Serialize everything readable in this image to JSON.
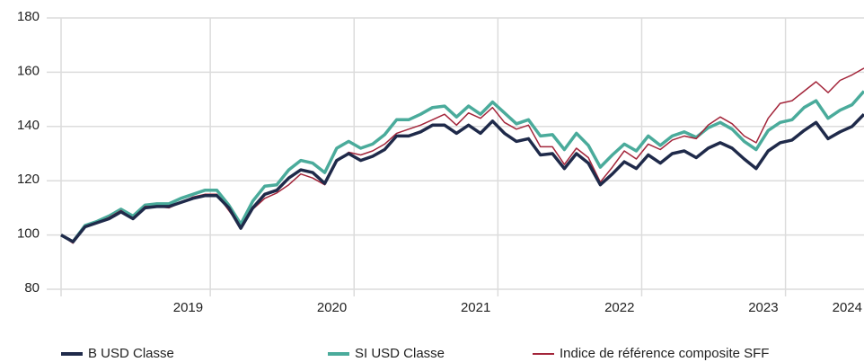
{
  "chart_data": {
    "type": "line",
    "categories": [
      null,
      null,
      null,
      null,
      null,
      null,
      null,
      null,
      null,
      null,
      null,
      null,
      "2019",
      null,
      null,
      null,
      null,
      null,
      null,
      null,
      null,
      null,
      null,
      null,
      "2020",
      null,
      null,
      null,
      null,
      null,
      null,
      null,
      null,
      null,
      null,
      null,
      "2021",
      null,
      null,
      null,
      null,
      null,
      null,
      null,
      null,
      null,
      null,
      null,
      "2022",
      null,
      null,
      null,
      null,
      null,
      null,
      null,
      null,
      null,
      null,
      null,
      "2023",
      null,
      null,
      null,
      null,
      null,
      null,
      "2024"
    ],
    "series": [
      {
        "name": "B USD Classe",
        "color": "#1f2a4a",
        "values": [
          100,
          97.5,
          103,
          104.5,
          106,
          108.5,
          106,
          110,
          110.5,
          110.5,
          112,
          113.5,
          114.5,
          114.5,
          110,
          102.5,
          110,
          115,
          116.5,
          121,
          124,
          123,
          119,
          127.5,
          130,
          127.5,
          129,
          131.5,
          136.5,
          136.5,
          138,
          140.5,
          140.5,
          137.5,
          140.5,
          137.5,
          142,
          137.5,
          134.5,
          135.5,
          129.5,
          130,
          124.5,
          130,
          126.5,
          118.5,
          122.5,
          127,
          124.5,
          129.5,
          126.5,
          130,
          131,
          128.5,
          132,
          134,
          132,
          128,
          124.5,
          131,
          134,
          135,
          138.5,
          141.5,
          135.5,
          138,
          140,
          144.5
        ]
      },
      {
        "name": "SI USD Classe",
        "color": "#4aab9b",
        "values": [
          100,
          97.5,
          103.5,
          105,
          107,
          109.5,
          107,
          111,
          111.5,
          111.5,
          113.5,
          115,
          116.5,
          116.5,
          111,
          104,
          112.5,
          118,
          118.5,
          124,
          127.5,
          126.5,
          123,
          132,
          134.5,
          132,
          133.5,
          137,
          142.5,
          142.5,
          144.5,
          147,
          147.5,
          143.5,
          147.5,
          144.5,
          149,
          145,
          141,
          142.5,
          136.5,
          137,
          131.5,
          137.5,
          133,
          125,
          129.5,
          133.5,
          131,
          136.5,
          133,
          136.5,
          138,
          136,
          139.5,
          141.5,
          139,
          134.5,
          131.5,
          138.5,
          141.5,
          142.5,
          147,
          149.5,
          143,
          146,
          148,
          153
        ]
      },
      {
        "name": "Indice de référence composite SFF",
        "color": "#a3253a",
        "values": [
          100,
          97,
          103,
          104.5,
          106.5,
          109,
          106,
          110.5,
          110.5,
          110,
          112,
          114,
          115,
          115,
          109,
          103,
          109.5,
          113.5,
          115.5,
          118.5,
          122.5,
          121,
          118.5,
          127,
          130.5,
          129.5,
          131,
          133.5,
          137.5,
          139,
          140.5,
          142.5,
          144.5,
          140.5,
          145,
          143,
          147,
          141.5,
          139,
          140.5,
          132.5,
          132.5,
          126,
          132,
          128.5,
          119.5,
          125,
          131,
          128,
          133.5,
          131.5,
          135,
          136.5,
          135.5,
          140.5,
          143.5,
          141,
          136.5,
          134,
          143,
          148.5,
          149.5,
          153,
          156.5,
          152.5,
          157,
          159,
          161.5
        ]
      }
    ],
    "ylim": [
      80,
      180
    ],
    "yticks": [
      80,
      100,
      120,
      140,
      160,
      180
    ],
    "grid": true
  }
}
